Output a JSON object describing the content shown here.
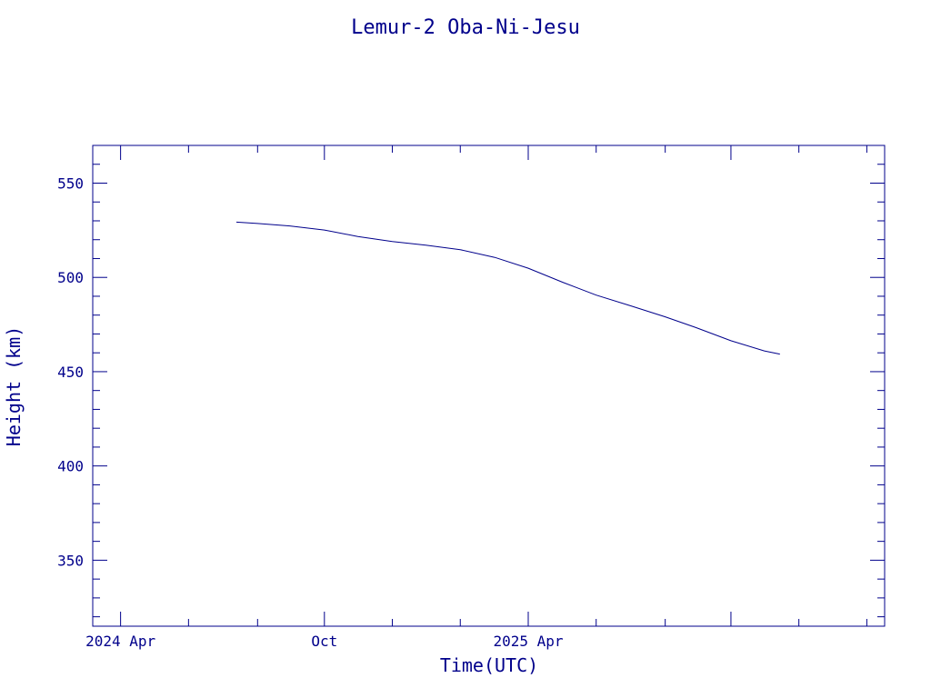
{
  "chart_data": {
    "type": "line",
    "title": "Lemur-2 Oba-Ni-Jesu",
    "xlabel": "Time(UTC)",
    "ylabel": "Height (km)",
    "x_ticks": [
      "2024 Apr",
      "Oct",
      "2025 Apr"
    ],
    "y_ticks": [
      350,
      400,
      450,
      500,
      550
    ],
    "ylim": [
      315,
      570
    ],
    "xlim": [
      "2023-09-06",
      "2025-08-17"
    ],
    "grid": false,
    "color": "#00008b",
    "series": [
      {
        "x": [
          "2024-01-13",
          "2024-02-01",
          "2024-03-01",
          "2024-04-01",
          "2024-05-01",
          "2024-06-01",
          "2024-07-01",
          "2024-08-01",
          "2024-09-01",
          "2024-10-01",
          "2024-11-01",
          "2024-12-01",
          "2025-01-01",
          "2025-02-01",
          "2025-03-01",
          "2025-04-01",
          "2025-05-01",
          "2025-05-15"
        ],
        "y": [
          529.3,
          528.6,
          527.3,
          525.1,
          521.7,
          519.0,
          517.1,
          514.7,
          510.6,
          504.9,
          497.4,
          490.6,
          484.9,
          479.1,
          473.3,
          466.4,
          461.0,
          459.3
        ]
      }
    ]
  }
}
